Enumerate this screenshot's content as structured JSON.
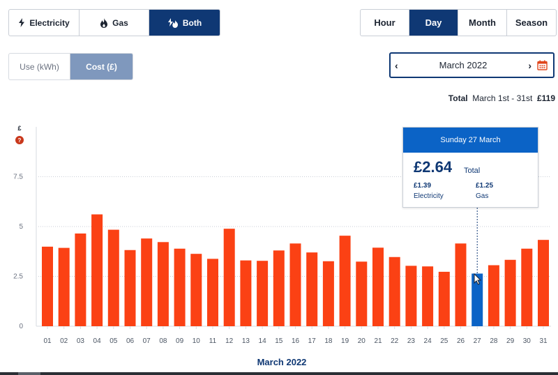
{
  "fuel_toggle": {
    "electricity": "Electricity",
    "gas": "Gas",
    "both": "Both",
    "selected": "both"
  },
  "period_toggle": {
    "hour": "Hour",
    "day": "Day",
    "month": "Month",
    "season": "Season",
    "selected": "day"
  },
  "unit_toggle": {
    "use": "Use (kWh)",
    "cost": "Cost (£)",
    "selected": "cost"
  },
  "date_picker": {
    "label": "March 2022",
    "prev": "‹",
    "next": "›",
    "icon": "calendar-icon"
  },
  "total": {
    "label": "Total",
    "range": "March 1st - 31st",
    "value": "£119"
  },
  "colors": {
    "bar": "#fb4114",
    "bar_selected": "#0b63c6",
    "brand": "#0f3874",
    "help": "#c9381c"
  },
  "y_axis": {
    "unit": "£",
    "help_icon": "?"
  },
  "tooltip": {
    "date": "Sunday 27 March",
    "total_value": "£2.64",
    "total_label": "Total",
    "electricity_value": "£1.39",
    "electricity_label": "Electricity",
    "gas_value": "£1.25",
    "gas_label": "Gas"
  },
  "chart_data": {
    "type": "bar",
    "xlabel": "March 2022",
    "ylabel": "£",
    "ylim": [
      0,
      10
    ],
    "yticks": [
      "0",
      "2.5",
      "5",
      "7.5"
    ],
    "categories": [
      "01",
      "02",
      "03",
      "04",
      "05",
      "06",
      "07",
      "08",
      "09",
      "10",
      "11",
      "12",
      "13",
      "14",
      "15",
      "16",
      "17",
      "18",
      "19",
      "20",
      "21",
      "22",
      "23",
      "24",
      "25",
      "26",
      "27",
      "28",
      "29",
      "30",
      "31"
    ],
    "values": [
      3.99,
      3.93,
      4.65,
      5.61,
      4.84,
      3.82,
      4.4,
      4.22,
      3.89,
      3.63,
      3.38,
      4.89,
      3.3,
      3.28,
      3.8,
      4.15,
      3.7,
      3.26,
      4.54,
      3.24,
      3.94,
      3.47,
      3.03,
      3.0,
      2.73,
      4.15,
      2.64,
      3.06,
      3.33,
      3.89,
      4.33
    ],
    "highlighted": "27"
  }
}
